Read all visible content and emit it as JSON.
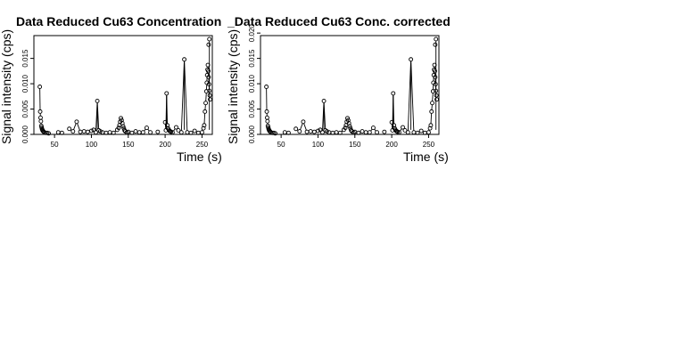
{
  "chart_data": [
    {
      "type": "scatter",
      "title": "Data Reduced Cu63 Concentration",
      "xlabel": "Time (s)",
      "ylabel": "Signal intensity (cps)",
      "xlim": [
        22,
        264
      ],
      "ylim": [
        0,
        0.0195
      ],
      "xticks": [
        50,
        100,
        150,
        200,
        250
      ],
      "yticks": [
        "0.000",
        "0.005",
        "0.010",
        "0.015"
      ],
      "grid": false,
      "x": [
        30,
        30.5,
        31,
        31.5,
        32,
        32.5,
        33,
        33.5,
        34,
        35,
        36,
        38,
        40,
        42,
        55,
        60,
        70,
        75,
        80,
        85,
        90,
        95,
        100,
        103,
        106,
        108,
        110,
        112,
        115,
        120,
        125,
        130,
        135,
        137,
        138,
        139,
        140,
        141,
        142,
        143,
        144,
        145,
        146,
        148,
        150,
        155,
        160,
        165,
        170,
        175,
        180,
        190,
        200,
        201,
        202,
        203,
        204,
        205,
        206,
        207,
        208,
        210,
        215,
        218,
        222,
        226,
        230,
        235,
        240,
        245,
        250,
        252,
        253,
        254,
        255,
        256,
        256.5,
        257,
        257.5,
        258,
        258.5,
        259,
        259.5,
        260,
        260.5,
        261
      ],
      "values": [
        0.0094,
        0.0045,
        0.0033,
        0.0026,
        0.0017,
        0.0014,
        0.0011,
        0.0009,
        0.0007,
        0.0006,
        0.0004,
        0.0003,
        0.0003,
        0.0002,
        0.0004,
        0.0003,
        0.0011,
        0.0006,
        0.0025,
        0.0005,
        0.0006,
        0.0005,
        0.0007,
        0.0009,
        0.0004,
        0.0066,
        0.0008,
        0.0006,
        0.0004,
        0.0003,
        0.0004,
        0.0003,
        0.0009,
        0.0013,
        0.0018,
        0.0025,
        0.0032,
        0.0028,
        0.0022,
        0.0016,
        0.0012,
        0.0008,
        0.0006,
        0.0004,
        0.0005,
        0.0003,
        0.0006,
        0.0004,
        0.0004,
        0.0013,
        0.0004,
        0.0005,
        0.0024,
        0.0008,
        0.0081,
        0.0018,
        0.0012,
        0.0009,
        0.0007,
        0.0006,
        0.0005,
        0.0004,
        0.0014,
        0.0008,
        0.0004,
        0.0148,
        0.0004,
        0.0003,
        0.0007,
        0.0003,
        0.0004,
        0.0012,
        0.0018,
        0.0045,
        0.0062,
        0.0085,
        0.0102,
        0.0117,
        0.0128,
        0.0137,
        0.0125,
        0.0113,
        0.0099,
        0.0086,
        0.0077,
        0.0069
      ],
      "extra_points": [
        [
          259,
          0.0177
        ],
        [
          260,
          0.0188
        ]
      ]
    },
    {
      "type": "scatter",
      "title": "_Data Reduced Cu63 Conc. corrected",
      "xlabel": "Time (s)",
      "ylabel": "Signal intensity (cps)",
      "xlim": [
        22,
        264
      ],
      "ylim": [
        0,
        0.0195
      ],
      "xticks": [
        50,
        100,
        150,
        200,
        250
      ],
      "yticks": [
        "0.000",
        "0.005",
        "0.010",
        "0.015",
        "0.020"
      ],
      "grid": false,
      "x": [
        30,
        30.5,
        31,
        31.5,
        32,
        32.5,
        33,
        33.5,
        34,
        35,
        36,
        38,
        40,
        42,
        55,
        60,
        70,
        75,
        80,
        85,
        90,
        95,
        100,
        103,
        106,
        108,
        110,
        112,
        115,
        120,
        125,
        130,
        135,
        137,
        138,
        139,
        140,
        141,
        142,
        143,
        144,
        145,
        146,
        148,
        150,
        155,
        160,
        165,
        170,
        175,
        180,
        190,
        200,
        201,
        202,
        203,
        204,
        205,
        206,
        207,
        208,
        210,
        215,
        218,
        222,
        226,
        230,
        235,
        240,
        245,
        250,
        252,
        253,
        254,
        255,
        256,
        256.5,
        257,
        257.5,
        258,
        258.5,
        259,
        259.5,
        260,
        260.5,
        261
      ],
      "values": [
        0.0094,
        0.0045,
        0.0033,
        0.0026,
        0.0017,
        0.0014,
        0.0011,
        0.0009,
        0.0007,
        0.0006,
        0.0004,
        0.0003,
        0.0003,
        0.0002,
        0.0004,
        0.0003,
        0.0011,
        0.0006,
        0.0025,
        0.0005,
        0.0006,
        0.0005,
        0.0007,
        0.0009,
        0.0004,
        0.0066,
        0.0008,
        0.0006,
        0.0004,
        0.0003,
        0.0004,
        0.0003,
        0.0009,
        0.0013,
        0.0018,
        0.0025,
        0.0032,
        0.0028,
        0.0022,
        0.0016,
        0.0012,
        0.0008,
        0.0006,
        0.0004,
        0.0005,
        0.0003,
        0.0006,
        0.0004,
        0.0004,
        0.0013,
        0.0004,
        0.0005,
        0.0024,
        0.0008,
        0.0081,
        0.0018,
        0.0012,
        0.0009,
        0.0007,
        0.0006,
        0.0005,
        0.0004,
        0.0014,
        0.0008,
        0.0004,
        0.0148,
        0.0004,
        0.0003,
        0.0007,
        0.0003,
        0.0004,
        0.0012,
        0.0018,
        0.0045,
        0.0062,
        0.0085,
        0.0102,
        0.0117,
        0.0128,
        0.0137,
        0.0125,
        0.0113,
        0.0099,
        0.0086,
        0.0077,
        0.0069
      ],
      "extra_points": [
        [
          259,
          0.0177
        ],
        [
          260,
          0.0188
        ]
      ]
    }
  ]
}
